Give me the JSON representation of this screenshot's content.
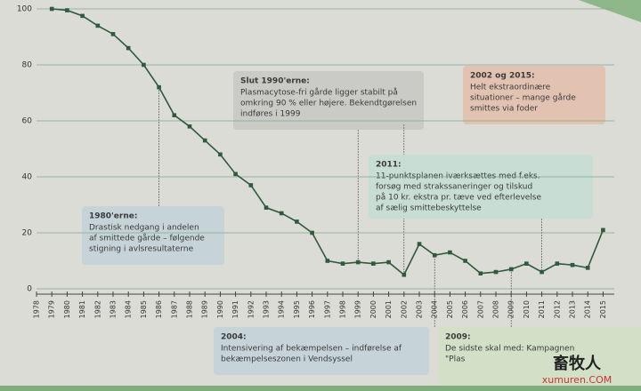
{
  "chart_data": {
    "type": "line",
    "categories": [
      "1978",
      "1979",
      "1980",
      "1981",
      "1982",
      "1983",
      "1984",
      "1985",
      "1986",
      "1987",
      "1988",
      "1989",
      "1990",
      "1991",
      "1992",
      "1993",
      "1994",
      "1995",
      "1996",
      "1997",
      "1998",
      "1999",
      "2000",
      "2001",
      "2002",
      "2003",
      "2004",
      "2005",
      "2006",
      "2007",
      "2008",
      "2009",
      "2010",
      "2011",
      "2012",
      "2013",
      "2014",
      "2015"
    ],
    "series": [
      {
        "color": "#2f5a3c",
        "values": [
          null,
          100,
          99.5,
          97.5,
          94,
          91,
          86,
          80,
          72,
          62,
          58,
          53,
          48,
          41,
          37,
          29,
          27,
          24,
          20,
          10,
          9,
          9.5,
          9,
          9.5,
          5,
          16,
          12,
          13,
          10,
          5.5,
          6,
          7,
          9,
          6,
          9,
          8.5,
          7.5,
          21
        ]
      }
    ],
    "ylim": [
      0,
      100
    ],
    "yticks": [
      0,
      20,
      40,
      60,
      80,
      100
    ],
    "grid": true,
    "annotations": [
      {
        "title": "Slut 1990'erne:",
        "lines": [
          "Plasmacytose-fri gårde ligger stabilt på",
          "omkring 90 % eller højere. Bekendtgørelsen",
          "indføres i 1999"
        ],
        "color": "#c8c8c4"
      },
      {
        "title": "2002 og 2015:",
        "lines": [
          "Helt ekstraordinære",
          "situationer – mange gårde",
          "smittes via foder"
        ],
        "color": "#e2c0ae"
      },
      {
        "title": "2011:",
        "lines": [
          "11-punktsplanen iværksættes med f.eks.",
          "forsøg med strakssaneringer og tilskud",
          "på 10 kr. ekstra pr. tæve ved efterlevelse",
          "af sælig smittebeskyttelse"
        ],
        "color": "#c6dcd2"
      },
      {
        "title": "1980'erne:",
        "lines": [
          "Drastisk nedgang i andelen",
          "af smittede gårde – følgende",
          "stigning i avlsresultaterne"
        ],
        "color": "#c3d3da"
      },
      {
        "title": "2004:",
        "lines": [
          "Intensivering af bekæmpelsen – indførelse af",
          "bekæmpelseszonen i Vendsyssel"
        ],
        "color": "#c3d3da"
      },
      {
        "title": "2009:",
        "lines": [
          "De sidste skal med: Kampagnen",
          "\"Plas"
        ],
        "color": "#cfe0c4"
      }
    ],
    "watermark": [
      "畜牧人",
      "xumuren.COM"
    ]
  }
}
